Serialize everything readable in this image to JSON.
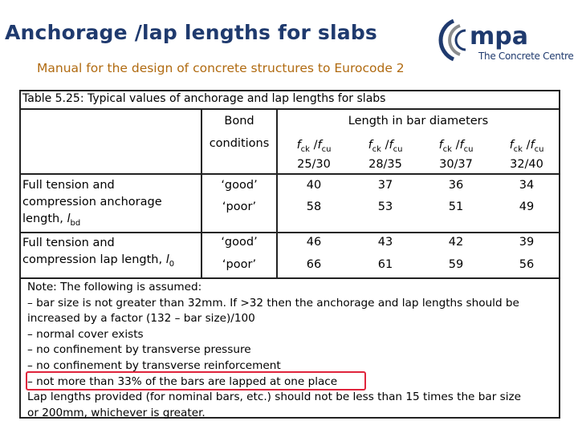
{
  "slide": {
    "title": "Anchorage /lap lengths for slabs",
    "subtitle": "Manual for the design of concrete structures to Eurocode 2"
  },
  "logo": {
    "text": "mpa",
    "subtext": "The Concrete Centre",
    "colors": {
      "blue": "#1f3a6e",
      "grey": "#8a8c8e"
    }
  },
  "table": {
    "caption": "Table 5.25:  Typical values of anchorage and lap lengths for slabs",
    "bond_header_1": "Bond",
    "bond_header_2": "conditions",
    "length_header": "Length in bar diameters",
    "grade_columns": [
      {
        "top": "25/30",
        "sym": "ck",
        "sym2": "cu"
      },
      {
        "top": "28/35",
        "sym": "ck",
        "sym2": "cu"
      },
      {
        "top": "30/37",
        "sym": "ck",
        "sym2": "cu"
      },
      {
        "top": "32/40",
        "sym": "ck",
        "sym2": "cu"
      }
    ],
    "groups": [
      {
        "label_lines": [
          "Full tension and",
          "compression anchorage",
          "length, "
        ],
        "label_symbol": "l",
        "label_sub": "bd",
        "rows": [
          {
            "bond": "‘good’",
            "values": [
              "40",
              "37",
              "36",
              "34"
            ]
          },
          {
            "bond": "‘poor’",
            "values": [
              "58",
              "53",
              "51",
              "49"
            ]
          }
        ]
      },
      {
        "label_lines": [
          "Full tension and",
          "compression lap length, "
        ],
        "label_symbol": "l",
        "label_sub": "0",
        "rows": [
          {
            "bond": "‘good’",
            "values": [
              "46",
              "43",
              "42",
              "39"
            ]
          },
          {
            "bond": "‘poor’",
            "values": [
              "66",
              "61",
              "59",
              "56"
            ]
          }
        ]
      }
    ]
  },
  "notes": [
    "Note:  The following is assumed:",
    "– bar size is not greater than 32mm. If >32 then the anchorage and lap lengths should be",
    "increased by a factor (132 – bar size)/100",
    "– normal cover exists",
    "– no confinement by transverse pressure",
    "– no confinement by transverse reinforcement",
    "– not more than 33% of the bars are lapped at one place",
    "Lap lengths provided (for nominal bars, etc.) should not be less than 15 times the bar size",
    "or 200mm, whichever is greater."
  ],
  "highlight_color": "#e0243c"
}
